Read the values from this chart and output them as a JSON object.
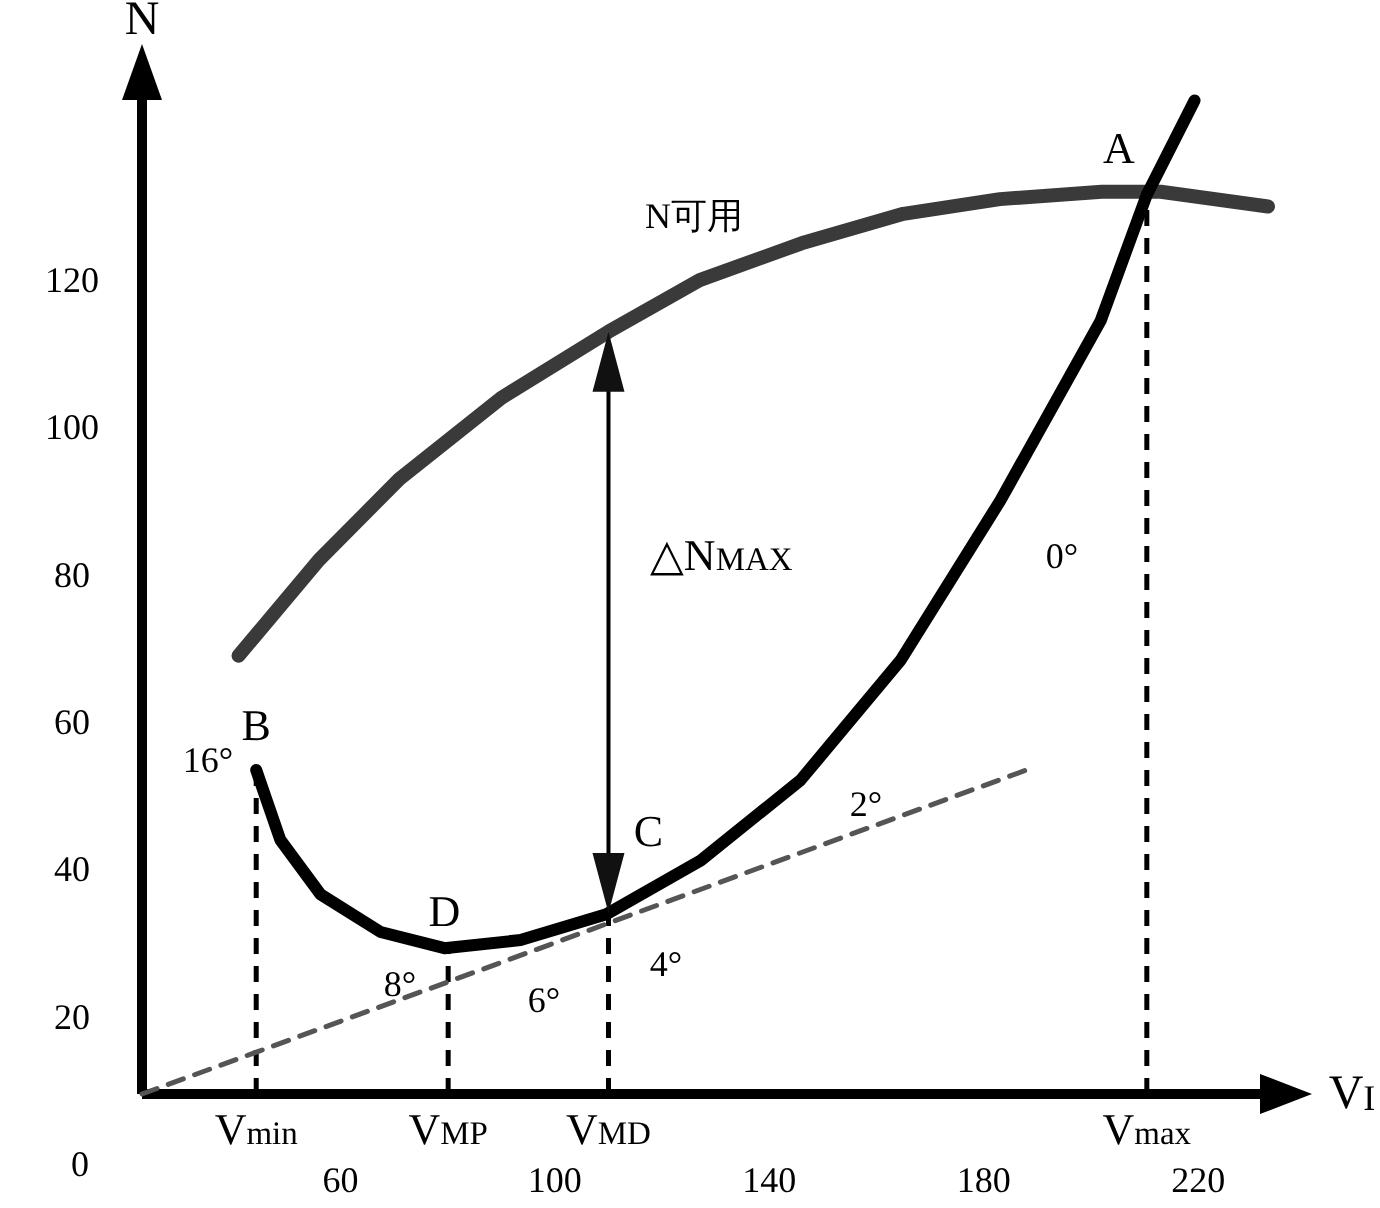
{
  "chart_data": {
    "type": "line",
    "xlabel": "V$_{I}$",
    "ylabel": "N",
    "xlim": [
      23,
      233
    ],
    "ylim": [
      9.5,
      145
    ],
    "xticks": [
      60,
      100,
      140,
      180,
      220
    ],
    "yticks": [
      20,
      40,
      60,
      80,
      100,
      120
    ],
    "grid": false,
    "marker": "none",
    "series": [
      {
        "color": "#3a3a3a",
        "x": [
          41,
          56,
          71,
          90,
          110,
          127,
          146,
          165,
          183,
          202,
          213,
          233
        ],
        "values": [
          69,
          82,
          93,
          104,
          113,
          120,
          125,
          129,
          131,
          132,
          132,
          130
        ]
      },
      {
        "color": "#000000",
        "x": [
          44.3,
          48.8,
          56.3,
          67.5,
          79.4,
          93.6,
          109.6,
          127.2,
          145.8,
          164.5,
          183.1,
          201.8,
          210.4,
          219.3
        ],
        "values": [
          53.5,
          44,
          36.6,
          31.5,
          29.3,
          30.4,
          33.9,
          41.2,
          52.1,
          68.4,
          90.1,
          114.5,
          131.6,
          144.4
        ]
      },
      {
        "color": "#555555",
        "line_style": "dashed",
        "x": [
          23,
          188
        ],
        "values": [
          9.5,
          53.5
        ]
      }
    ],
    "ref_lines": [
      {
        "axis": "x",
        "value": 44.3,
        "label": "V$_{min}$",
        "color": "#000000",
        "line_style": "dashed"
      },
      {
        "axis": "x",
        "value": 80.1,
        "label": "V$_{MP}$",
        "color": "#000000",
        "line_style": "dashed"
      },
      {
        "axis": "x",
        "value": 110,
        "label": "V$_{MD}$",
        "color": "#000000",
        "line_style": "dashed"
      },
      {
        "axis": "x",
        "value": 210.4,
        "label": "V$_{max}$",
        "color": "#000000",
        "line_style": "dashed"
      }
    ],
    "annotations": [
      "N可用",
      {
        "text": "A",
        "x": 210.4,
        "y": 131.6
      },
      {
        "text": "B",
        "x": 44.3,
        "y": 53.5
      },
      {
        "text": "C",
        "x": 109.6,
        "y": 33.9
      },
      {
        "text": "D",
        "x": 79.4,
        "y": 29.3
      },
      "16°",
      "8°",
      "6°",
      "4°",
      "2°",
      "0°",
      "△N$_{MAX}$",
      "0"
    ]
  }
}
